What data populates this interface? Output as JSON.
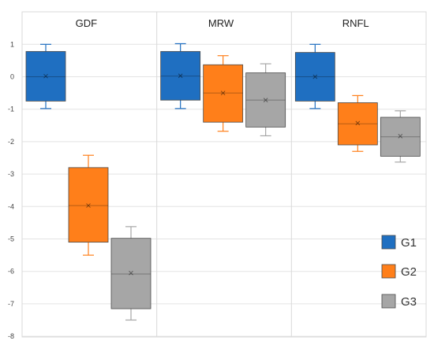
{
  "chart_data": {
    "type": "box",
    "ylim": [
      -8,
      1.5
    ],
    "y_ticks": [
      "1",
      "0",
      "-1",
      "-2",
      "-3",
      "-4",
      "-5",
      "-6",
      "-7",
      "-8"
    ],
    "grid": true,
    "legend_position": "bottom-right",
    "series": [
      {
        "name": "G1",
        "color": "#1f6fc1"
      },
      {
        "name": "G2",
        "color": "#ff7f1a"
      },
      {
        "name": "G3",
        "color": "#a6a6a6"
      }
    ],
    "panels": [
      {
        "title": "GDF",
        "boxes": [
          {
            "series": "G1",
            "min": -0.98,
            "q1": -0.75,
            "median": 0.0,
            "mean": 0.02,
            "q3": 0.78,
            "max": 1.0
          },
          {
            "series": "G2",
            "min": -5.5,
            "q1": -5.1,
            "median": -3.97,
            "mean": -3.97,
            "q3": -2.8,
            "max": -2.42
          },
          {
            "series": "G3",
            "min": -7.5,
            "q1": -7.15,
            "median": -6.08,
            "mean": -6.05,
            "q3": -4.98,
            "max": -4.62
          }
        ]
      },
      {
        "title": "MRW",
        "boxes": [
          {
            "series": "G1",
            "min": -0.98,
            "q1": -0.72,
            "median": 0.02,
            "mean": 0.03,
            "q3": 0.78,
            "max": 1.02
          },
          {
            "series": "G2",
            "min": -1.68,
            "q1": -1.4,
            "median": -0.5,
            "mean": -0.5,
            "q3": 0.37,
            "max": 0.65
          },
          {
            "series": "G3",
            "min": -1.82,
            "q1": -1.55,
            "median": -0.72,
            "mean": -0.72,
            "q3": 0.12,
            "max": 0.4
          }
        ]
      },
      {
        "title": "RNFL",
        "boxes": [
          {
            "series": "G1",
            "min": -0.98,
            "q1": -0.75,
            "median": 0.0,
            "mean": 0.0,
            "q3": 0.75,
            "max": 1.0
          },
          {
            "series": "G2",
            "min": -2.3,
            "q1": -2.1,
            "median": -1.45,
            "mean": -1.43,
            "q3": -0.8,
            "max": -0.58
          },
          {
            "series": "G3",
            "min": -2.63,
            "q1": -2.45,
            "median": -1.85,
            "mean": -1.83,
            "q3": -1.25,
            "max": -1.05
          }
        ]
      }
    ]
  }
}
